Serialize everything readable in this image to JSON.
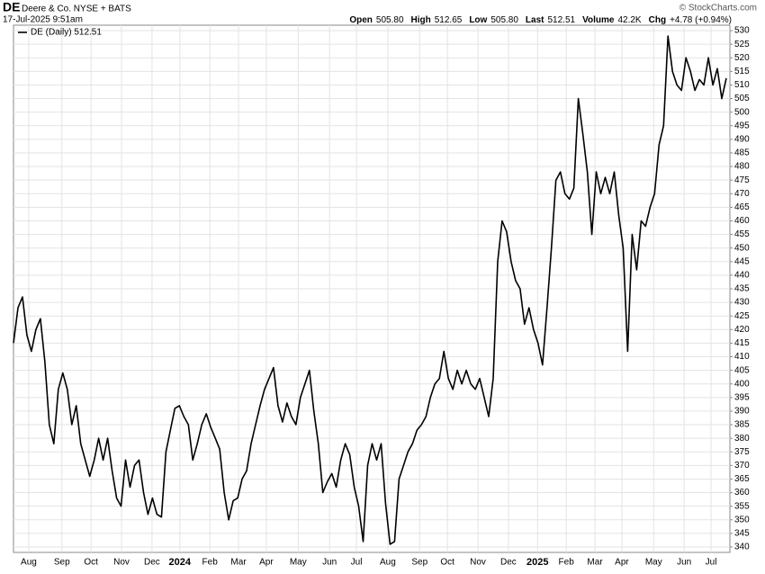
{
  "chart_data": {
    "type": "line",
    "symbol": "DE",
    "company": "Deere & Co. NYSE + BATS",
    "timestamp": "17-Jul-2025 9:51am",
    "quote": [
      {
        "label": "Open",
        "text": "505.80"
      },
      {
        "label": "High",
        "text": "512.65"
      },
      {
        "label": "Low",
        "text": "505.80"
      },
      {
        "label": "Last",
        "text": "512.51"
      },
      {
        "label": "Volume",
        "text": "42.2K"
      },
      {
        "label": "Chg",
        "text": "+4.78 (+0.94%)"
      }
    ],
    "watermark": "© StockCharts.com",
    "legend": "top-left",
    "grid": true,
    "xlim": [
      0,
      159
    ],
    "xticks": [
      {
        "value": 3.4,
        "label": "Aug"
      },
      {
        "value": 10.8,
        "label": "Sep"
      },
      {
        "value": 17.3,
        "label": "Oct"
      },
      {
        "value": 24.1,
        "label": "Nov"
      },
      {
        "value": 30.9,
        "label": "Dec"
      },
      {
        "value": 37.1,
        "label": "2024"
      },
      {
        "value": 43.8,
        "label": "Feb"
      },
      {
        "value": 50.2,
        "label": "Mar"
      },
      {
        "value": 56.4,
        "label": "Apr"
      },
      {
        "value": 63.5,
        "label": "May"
      },
      {
        "value": 70.5,
        "label": "Jun"
      },
      {
        "value": 76.5,
        "label": "Jul"
      },
      {
        "value": 83.5,
        "label": "Aug"
      },
      {
        "value": 90.6,
        "label": "Sep"
      },
      {
        "value": 96.8,
        "label": "Oct"
      },
      {
        "value": 103.6,
        "label": "Nov"
      },
      {
        "value": 110.4,
        "label": "Dec"
      },
      {
        "value": 116.9,
        "label": "2025"
      },
      {
        "value": 123.3,
        "label": "Feb"
      },
      {
        "value": 129.7,
        "label": "Mar"
      },
      {
        "value": 135.7,
        "label": "Apr"
      },
      {
        "value": 142.8,
        "label": "May"
      },
      {
        "value": 149.6,
        "label": "Jun"
      },
      {
        "value": 155.6,
        "label": "Jul"
      }
    ],
    "ylim": [
      338,
      532
    ],
    "yticks": [
      340,
      345,
      350,
      355,
      360,
      365,
      370,
      375,
      380,
      385,
      390,
      395,
      400,
      405,
      410,
      415,
      420,
      425,
      430,
      435,
      440,
      445,
      450,
      455,
      460,
      465,
      470,
      475,
      480,
      485,
      490,
      495,
      500,
      505,
      510,
      515,
      520,
      525,
      530
    ],
    "series": [
      {
        "name": "DE (Daily) 512.51",
        "color": "#000000",
        "values": [
          415,
          428,
          432,
          418,
          412,
          420,
          424,
          408,
          385,
          378,
          398,
          404,
          398,
          385,
          392,
          378,
          372,
          366,
          372,
          380,
          372,
          380,
          368,
          358,
          355,
          372,
          362,
          370,
          372,
          360,
          352,
          358,
          352,
          351,
          375,
          383,
          391,
          392,
          388,
          385,
          372,
          378,
          385,
          389,
          384,
          380,
          376,
          360,
          350,
          357,
          358,
          365,
          368,
          378,
          385,
          392,
          398,
          402,
          406,
          392,
          386,
          393,
          388,
          385,
          395,
          400,
          405,
          390,
          378,
          360,
          364,
          367,
          362,
          372,
          378,
          374,
          362,
          355,
          342,
          370,
          378,
          372,
          378,
          356,
          341,
          342,
          365,
          370,
          375,
          378,
          383,
          385,
          388,
          395,
          400,
          402,
          412,
          402,
          398,
          405,
          400,
          405,
          400,
          398,
          402,
          395,
          388,
          402,
          445,
          460,
          456,
          445,
          438,
          435,
          422,
          428,
          420,
          415,
          407,
          428,
          450,
          475,
          478,
          470,
          468,
          472,
          505,
          492,
          478,
          455,
          478,
          470,
          476,
          470,
          478,
          462,
          450,
          412,
          455,
          442,
          460,
          458,
          465,
          470,
          488,
          495,
          528,
          515,
          510,
          508,
          520,
          515,
          508,
          512,
          510,
          520,
          510,
          516,
          505,
          512.51
        ]
      }
    ]
  }
}
